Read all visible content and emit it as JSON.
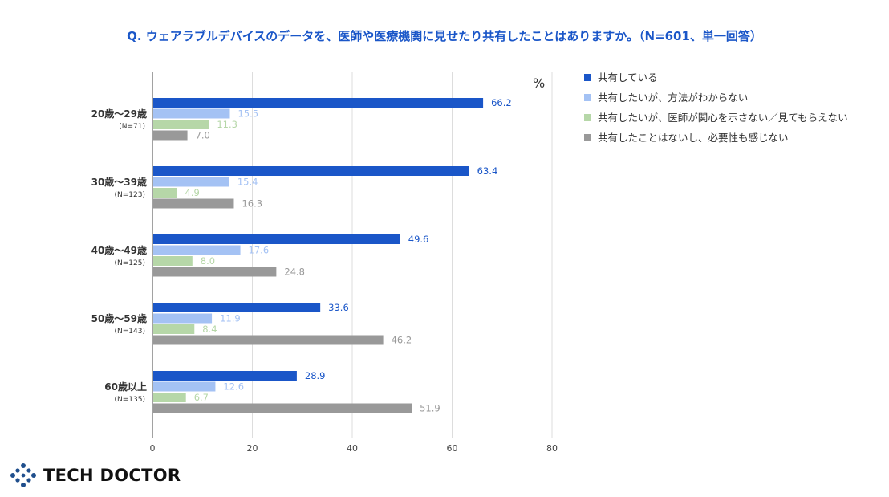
{
  "chart_data": {
    "type": "bar",
    "orientation": "horizontal",
    "title": "Q. ウェアラブルデバイスのデータを、医師や医療機関に見せたり共有したことはありますか。（N=601、単一回答）",
    "unit": "%",
    "categories": [
      "20歳〜29歳",
      "30歳〜39歳",
      "40歳〜49歳",
      "50歳〜59歳",
      "60歳以上"
    ],
    "category_n": [
      "(N=71)",
      "(N=123)",
      "(N=125)",
      "(N=143)",
      "(N=135)"
    ],
    "series": [
      {
        "name": "共有している",
        "color": "#1a56c8",
        "label_color": "#1a56c8",
        "values": [
          66.2,
          63.4,
          49.6,
          33.6,
          28.9
        ]
      },
      {
        "name": "共有したいが、方法がわからない",
        "color": "#a4c2f4",
        "label_color": "#a4c2f4",
        "values": [
          15.5,
          15.4,
          17.6,
          11.9,
          12.6
        ]
      },
      {
        "name": "共有したいが、医師が関心を示さない／見てもらえない",
        "color": "#b6d7a8",
        "label_color": "#b6d7a8",
        "values": [
          11.3,
          4.9,
          8.0,
          8.4,
          6.7
        ]
      },
      {
        "name": "共有したことはないし、必要性も感じない",
        "color": "#999999",
        "label_color": "#999999",
        "values": [
          7.0,
          16.3,
          24.8,
          46.2,
          51.9
        ]
      }
    ],
    "xlim": [
      0,
      80
    ],
    "xticks": [
      "0",
      "20",
      "40",
      "60",
      "80"
    ],
    "grid": true,
    "legend": "right"
  },
  "logo": {
    "text": "TECH DOCTOR",
    "color": "#1f4e8c"
  }
}
